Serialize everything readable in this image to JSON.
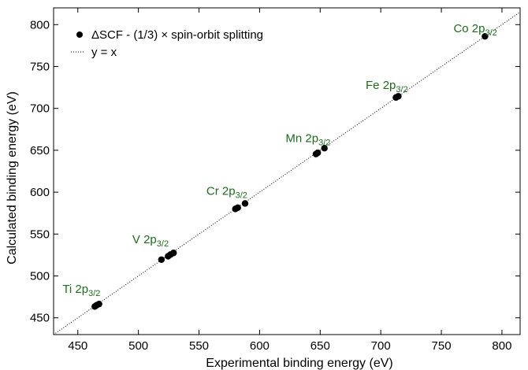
{
  "chart_data": {
    "type": "scatter",
    "xlabel": "Experimental binding energy (eV)",
    "ylabel": "Calculated binding energy (eV)",
    "xlim": [
      430,
      815
    ],
    "ylim": [
      430,
      820
    ],
    "xticks": [
      450,
      500,
      550,
      600,
      650,
      700,
      750,
      800
    ],
    "yticks": [
      450,
      500,
      550,
      600,
      650,
      700,
      750,
      800
    ],
    "grid": false,
    "legend_position": "top-left",
    "annotation_color": "#1e6b1e",
    "series": [
      {
        "name": "ΔSCF - (1/3) × spin-orbit splitting",
        "marker": "circle",
        "color": "#000000",
        "points": [
          {
            "x": 464.0,
            "y": 463.5
          },
          {
            "x": 465.5,
            "y": 465.0
          },
          {
            "x": 467.5,
            "y": 466.5
          },
          {
            "x": 519.0,
            "y": 519.5
          },
          {
            "x": 524.5,
            "y": 523.5
          },
          {
            "x": 526.5,
            "y": 525.5
          },
          {
            "x": 529.0,
            "y": 527.5
          },
          {
            "x": 580.0,
            "y": 580.0
          },
          {
            "x": 582.0,
            "y": 581.5
          },
          {
            "x": 588.0,
            "y": 586.5
          },
          {
            "x": 646.5,
            "y": 645.5
          },
          {
            "x": 648.0,
            "y": 647.0
          },
          {
            "x": 653.5,
            "y": 652.5
          },
          {
            "x": 712.5,
            "y": 713.0
          },
          {
            "x": 714.5,
            "y": 714.5
          },
          {
            "x": 786.0,
            "y": 786.0
          }
        ]
      },
      {
        "name": "y = x",
        "style": "dotted-line",
        "color": "#000000"
      }
    ],
    "annotations": [
      {
        "base": "Ti 2p",
        "sub": "3/2",
        "x": 453,
        "y": 480
      },
      {
        "base": "V 2p",
        "sub": "3/2",
        "x": 510,
        "y": 539
      },
      {
        "base": "Cr 2p",
        "sub": "3/2",
        "x": 573,
        "y": 597
      },
      {
        "base": "Mn 2p",
        "sub": "3/2",
        "x": 640,
        "y": 660
      },
      {
        "base": "Fe 2p",
        "sub": "3/2",
        "x": 705,
        "y": 723
      },
      {
        "base": "Co 2p",
        "sub": "3/2",
        "x": 778,
        "y": 791
      }
    ]
  }
}
